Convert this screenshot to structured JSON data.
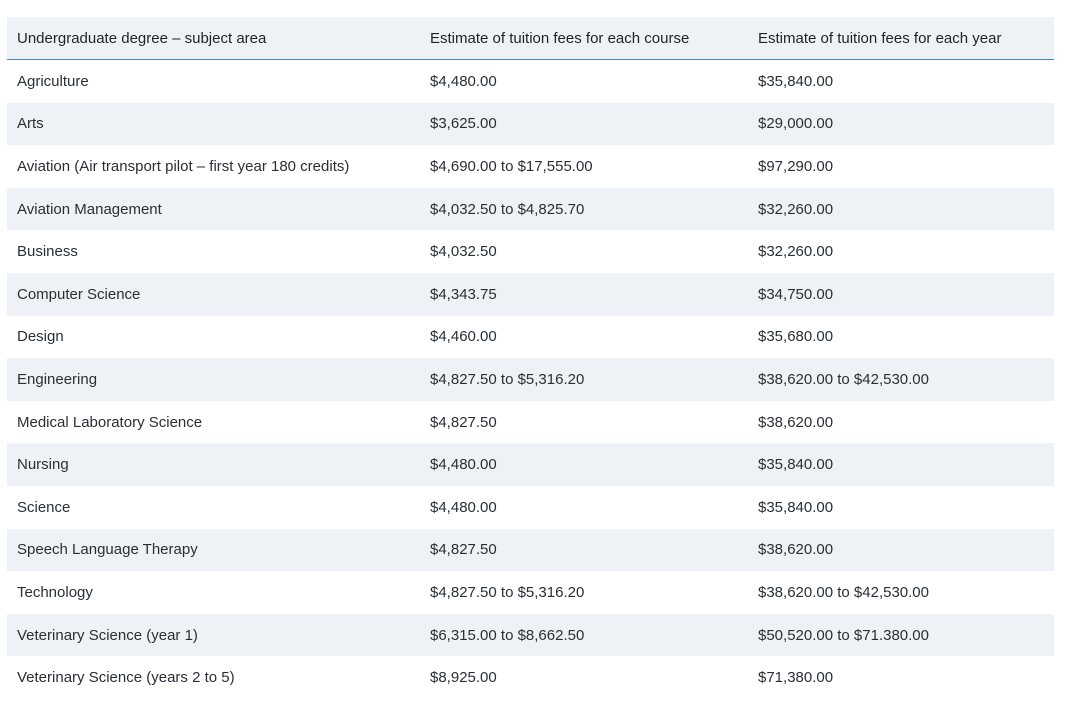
{
  "table": {
    "headers": [
      "Undergraduate degree – subject area",
      "Estimate of tuition fees for each course",
      "Estimate of tuition fees for each year"
    ],
    "rows": [
      [
        "Agriculture",
        "$4,480.00",
        "$35,840.00"
      ],
      [
        "Arts",
        "$3,625.00",
        "$29,000.00"
      ],
      [
        "Aviation (Air transport pilot – first year 180 credits)",
        "$4,690.00 to $17,555.00",
        "$97,290.00"
      ],
      [
        "Aviation Management",
        "$4,032.50 to $4,825.70",
        "$32,260.00"
      ],
      [
        "Business",
        "$4,032.50",
        "$32,260.00"
      ],
      [
        "Computer Science",
        "$4,343.75",
        "$34,750.00"
      ],
      [
        "Design",
        "$4,460.00",
        "$35,680.00"
      ],
      [
        "Engineering",
        "$4,827.50 to $5,316.20",
        "$38,620.00 to $42,530.00"
      ],
      [
        "Medical Laboratory Science",
        "$4,827.50",
        "$38,620.00"
      ],
      [
        "Nursing",
        "$4,480.00",
        "$35,840.00"
      ],
      [
        "Science",
        "$4,480.00",
        "$35,840.00"
      ],
      [
        "Speech Language Therapy",
        "$4,827.50",
        "$38,620.00"
      ],
      [
        "Technology",
        "$4,827.50 to $5,316.20",
        "$38,620.00 to $42,530.00"
      ],
      [
        "Veterinary Science (year 1)",
        "$6,315.00 to $8,662.50",
        "$50,520.00 to $71.380.00"
      ],
      [
        "Veterinary Science (years 2 to 5)",
        "$8,925.00",
        "$71,380.00"
      ]
    ]
  },
  "colors": {
    "header_bg": "#eef2f6",
    "stripe_bg": "#eef2f6",
    "header_rule": "#4f87bd",
    "text": "#1f2329"
  }
}
